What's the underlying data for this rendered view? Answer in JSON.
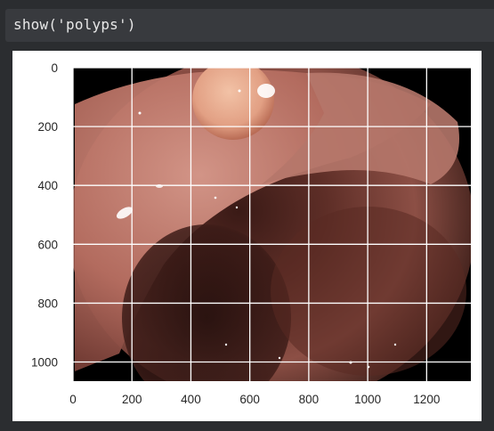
{
  "cell": {
    "code": "show('polyps')"
  },
  "figure": {
    "description_type": "image-axes",
    "x_ticks": [
      "0",
      "200",
      "400",
      "600",
      "800",
      "1000",
      "1200"
    ],
    "y_ticks": [
      "0",
      "200",
      "400",
      "600",
      "800",
      "1000"
    ],
    "x_tick_values": [
      0,
      200,
      400,
      600,
      800,
      1000,
      1200
    ],
    "y_tick_values": [
      0,
      200,
      400,
      600,
      800,
      1000
    ],
    "xlim": [
      0,
      1350
    ],
    "ylim": [
      1065,
      0
    ],
    "grid": true,
    "grid_color": "#ffffff",
    "tick_color": "#262626"
  }
}
